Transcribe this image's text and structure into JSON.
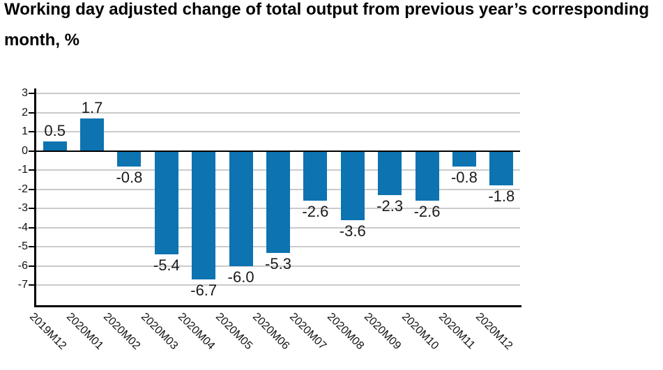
{
  "title": "Working day adjusted change of total output from previous year’s corresponding month, %",
  "chart_data": {
    "type": "bar",
    "title": "Working day adjusted change of total output from previous year’s corresponding month, %",
    "categories": [
      "2019M12",
      "2020M01",
      "2020M02",
      "2020M03",
      "2020M04",
      "2020M05",
      "2020M06",
      "2020M07",
      "2020M08",
      "2020M09",
      "2020M10",
      "2020M11",
      "2020M12"
    ],
    "values": [
      0.5,
      1.7,
      -0.8,
      -5.4,
      -6.7,
      -6.0,
      -5.3,
      -2.6,
      -3.6,
      -2.3,
      -2.6,
      -0.8,
      -1.8
    ],
    "data_labels": [
      "0.5",
      "1.7",
      "-0.8",
      "-5.4",
      "-6.7",
      "-6.0",
      "-5.3",
      "-2.6",
      "-3.6",
      "-2.3",
      "-2.6",
      "-0.8",
      "-1.8"
    ],
    "xlabel": "",
    "ylabel": "",
    "ylim": [
      -8.04,
      3.27
    ],
    "yticks": [
      3,
      2,
      1,
      0,
      -1,
      -2,
      -3,
      -4,
      -5,
      -6,
      -7
    ],
    "grid": true,
    "legend_position": "none",
    "bar_color": "#0d73b1",
    "grid_color": "#cacaca",
    "axis_color": "#000000",
    "text_color": "#111111"
  }
}
